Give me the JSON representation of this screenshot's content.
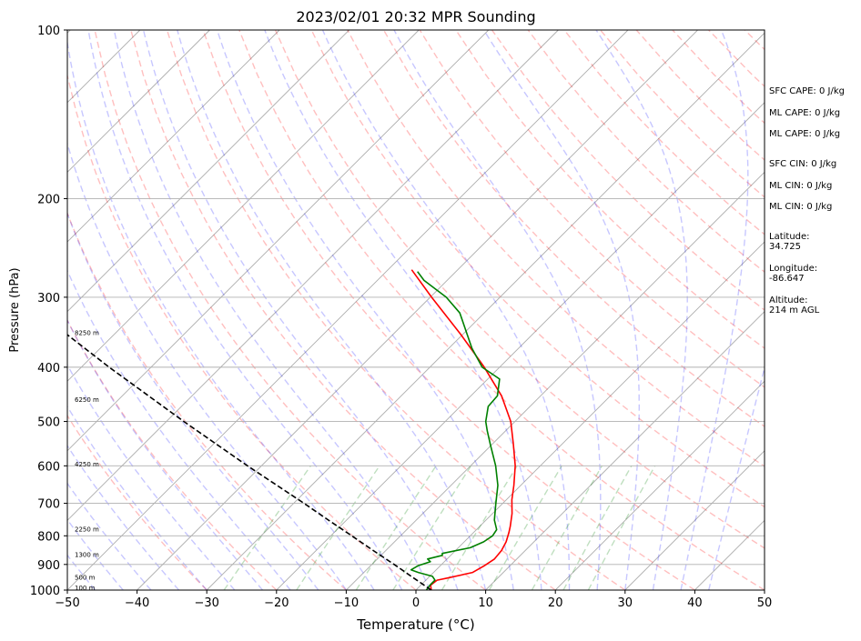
{
  "chart_data": {
    "type": "skew-t",
    "title": "2023/02/01 20:32 MPR Sounding",
    "xlabel": "Temperature (°C)",
    "ylabel": "Pressure (hPa)",
    "xlim": [
      -50,
      50
    ],
    "ylim": [
      1000,
      100
    ],
    "y_scale": "log",
    "x_ticks": [
      "−50",
      "−40",
      "−30",
      "−20",
      "−10",
      "0",
      "10",
      "20",
      "30",
      "40",
      "50"
    ],
    "y_ticks": [
      "100",
      "200",
      "300",
      "400",
      "500",
      "600",
      "700",
      "800",
      "900",
      "1000"
    ],
    "grid": true,
    "height_labels": [
      {
        "label": "100 m",
        "p": 993
      },
      {
        "label": "500 m",
        "p": 950
      },
      {
        "label": "1300 m",
        "p": 866
      },
      {
        "label": "2250 m",
        "p": 780
      },
      {
        "label": "4250 m",
        "p": 597
      },
      {
        "label": "6250 m",
        "p": 458
      },
      {
        "label": "8250 m",
        "p": 348
      }
    ],
    "series": [
      {
        "role": "temperature",
        "color": "#ff0000",
        "points": [
          {
            "p": 1000,
            "t": 2.2
          },
          {
            "p": 980,
            "t": 1.4
          },
          {
            "p": 960,
            "t": 1.6
          },
          {
            "p": 950,
            "t": 3.0
          },
          {
            "p": 930,
            "t": 5.6
          },
          {
            "p": 905,
            "t": 6.3
          },
          {
            "p": 880,
            "t": 6.8
          },
          {
            "p": 850,
            "t": 6.6
          },
          {
            "p": 820,
            "t": 6.0
          },
          {
            "p": 790,
            "t": 5.1
          },
          {
            "p": 770,
            "t": 4.4
          },
          {
            "p": 730,
            "t": 2.8
          },
          {
            "p": 690,
            "t": 0.8
          },
          {
            "p": 650,
            "t": -1.0
          },
          {
            "p": 600,
            "t": -3.6
          },
          {
            "p": 550,
            "t": -6.9
          },
          {
            "p": 500,
            "t": -10.6
          },
          {
            "p": 450,
            "t": -15.6
          },
          {
            "p": 400,
            "t": -22.2
          },
          {
            "p": 350,
            "t": -30.2
          },
          {
            "p": 300,
            "t": -39.8
          },
          {
            "p": 268,
            "t": -46.6
          }
        ]
      },
      {
        "role": "dewpoint",
        "color": "#008000",
        "points": [
          {
            "p": 1000,
            "t": 1.5
          },
          {
            "p": 980,
            "t": 1.3
          },
          {
            "p": 960,
            "t": 1.3
          },
          {
            "p": 945,
            "t": 0.4
          },
          {
            "p": 930,
            "t": -2.2
          },
          {
            "p": 920,
            "t": -3.6
          },
          {
            "p": 905,
            "t": -3.2
          },
          {
            "p": 890,
            "t": -2.0
          },
          {
            "p": 880,
            "t": -2.8
          },
          {
            "p": 867,
            "t": -1.2
          },
          {
            "p": 860,
            "t": -1.5
          },
          {
            "p": 840,
            "t": 1.7
          },
          {
            "p": 820,
            "t": 2.8
          },
          {
            "p": 800,
            "t": 3.2
          },
          {
            "p": 780,
            "t": 2.9
          },
          {
            "p": 750,
            "t": 1.2
          },
          {
            "p": 700,
            "t": -1.0
          },
          {
            "p": 650,
            "t": -3.3
          },
          {
            "p": 600,
            "t": -6.4
          },
          {
            "p": 550,
            "t": -10.2
          },
          {
            "p": 520,
            "t": -12.6
          },
          {
            "p": 500,
            "t": -14.2
          },
          {
            "p": 470,
            "t": -16.0
          },
          {
            "p": 450,
            "t": -16.2
          },
          {
            "p": 420,
            "t": -18.3
          },
          {
            "p": 400,
            "t": -22.5
          },
          {
            "p": 370,
            "t": -26.7
          },
          {
            "p": 350,
            "t": -29.3
          },
          {
            "p": 320,
            "t": -33.5
          },
          {
            "p": 300,
            "t": -37.7
          },
          {
            "p": 280,
            "t": -43.3
          },
          {
            "p": 270,
            "t": -45.5
          }
        ]
      },
      {
        "role": "parcel",
        "color": "#000000",
        "style": "dashed",
        "points": [
          {
            "p": 1000,
            "t": 2.2
          },
          {
            "p": 950,
            "t": -2.2
          },
          {
            "p": 900,
            "t": -6.8
          },
          {
            "p": 850,
            "t": -11.8
          },
          {
            "p": 800,
            "t": -17.0
          },
          {
            "p": 750,
            "t": -22.6
          },
          {
            "p": 700,
            "t": -28.5
          },
          {
            "p": 600,
            "t": -42.0
          },
          {
            "p": 500,
            "t": -57.5
          },
          {
            "p": 400,
            "t": -76.0
          },
          {
            "p": 300,
            "t": -99.0
          },
          {
            "p": 268,
            "t": -108.0
          }
        ]
      }
    ],
    "background_lines": {
      "isotherms_color": "#808080",
      "dry_adiabats_color": "#ff0000",
      "moist_adiabats_color": "#0000ff",
      "mixing_ratio_color": "#008000"
    }
  },
  "sidebar": {
    "cape_cin": [
      "SFC CAPE: 0 J/kg",
      "ML CAPE: 0 J/kg",
      "ML CAPE: 0 J/kg",
      "SFC CIN: 0 J/kg",
      "ML CIN: 0 J/kg",
      "ML CIN: 0 J/kg"
    ],
    "latitude": "Latitude:\n34.725",
    "longitude": "Longitude:\n-86.647",
    "altitude": "Altitude:\n214 m AGL"
  }
}
